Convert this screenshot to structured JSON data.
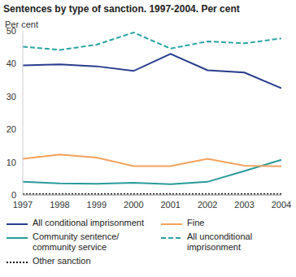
{
  "chart_data": {
    "type": "line",
    "title": "Sentences by type of sanction. 1997-2004. Per cent",
    "y_label": "Per cent",
    "categories": [
      "1997",
      "1998",
      "1999",
      "2000",
      "2001",
      "2002",
      "2003",
      "2004"
    ],
    "ylim": [
      0,
      50
    ],
    "yticks": [
      0,
      10,
      20,
      30,
      40,
      50
    ],
    "grid": false,
    "series": [
      {
        "name": "All conditional imprisonment",
        "color": "#283c8c",
        "line_style": "solid",
        "values": [
          39.5,
          39.8,
          39.2,
          37.8,
          43,
          38,
          37.3,
          32.5
        ]
      },
      {
        "name": "Community sentence/ community service",
        "color": "#2a9a9a",
        "line_style": "solid",
        "values": [
          4,
          3.5,
          3.4,
          3.7,
          3.3,
          4,
          7.3,
          10.7
        ]
      },
      {
        "name": "Other sanction",
        "color": "#111111",
        "line_style": "dotted",
        "values": [
          0.3,
          0.3,
          0.3,
          0.3,
          0.3,
          0.3,
          0.3,
          0.3
        ]
      },
      {
        "name": "Fine",
        "color": "#f2a25c",
        "line_style": "solid",
        "values": [
          11,
          12.3,
          11.4,
          8.8,
          8.8,
          11,
          8.9,
          8.7
        ]
      },
      {
        "name": "All unconditional imprisonment",
        "color": "#2aa3a3",
        "line_style": "dashed",
        "values": [
          45.2,
          44.2,
          45.8,
          49.5,
          44.6,
          46.8,
          46.2,
          47.7
        ]
      }
    ]
  }
}
